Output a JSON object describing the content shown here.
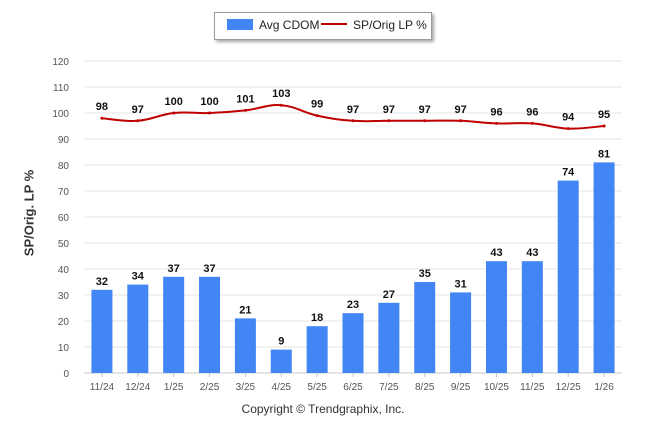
{
  "chart_data": {
    "type": "bar",
    "categories": [
      "11/24",
      "12/24",
      "1/25",
      "2/25",
      "3/25",
      "4/25",
      "5/25",
      "6/25",
      "7/25",
      "8/25",
      "9/25",
      "10/25",
      "11/25",
      "12/25",
      "1/26"
    ],
    "series": [
      {
        "name": "Avg CDOM",
        "type": "bar",
        "color": "#4285F4",
        "values": [
          32,
          34,
          37,
          37,
          21,
          9,
          18,
          23,
          27,
          35,
          31,
          43,
          43,
          74,
          81
        ]
      },
      {
        "name": "SP/Orig LP %",
        "type": "line",
        "color": "#c00000",
        "values": [
          98,
          97,
          100,
          100,
          101,
          103,
          99,
          97,
          97,
          97,
          97,
          96,
          96,
          94,
          95
        ]
      }
    ],
    "ylabel": "SP/Orig. LP %",
    "ylim": [
      0,
      120
    ],
    "yticks": [
      0,
      10,
      20,
      30,
      40,
      50,
      60,
      70,
      80,
      90,
      100,
      110,
      120
    ],
    "grid": true,
    "legend_position": "top-center"
  },
  "footer": {
    "copyright": "Copyright © Trendgraphix, Inc."
  }
}
